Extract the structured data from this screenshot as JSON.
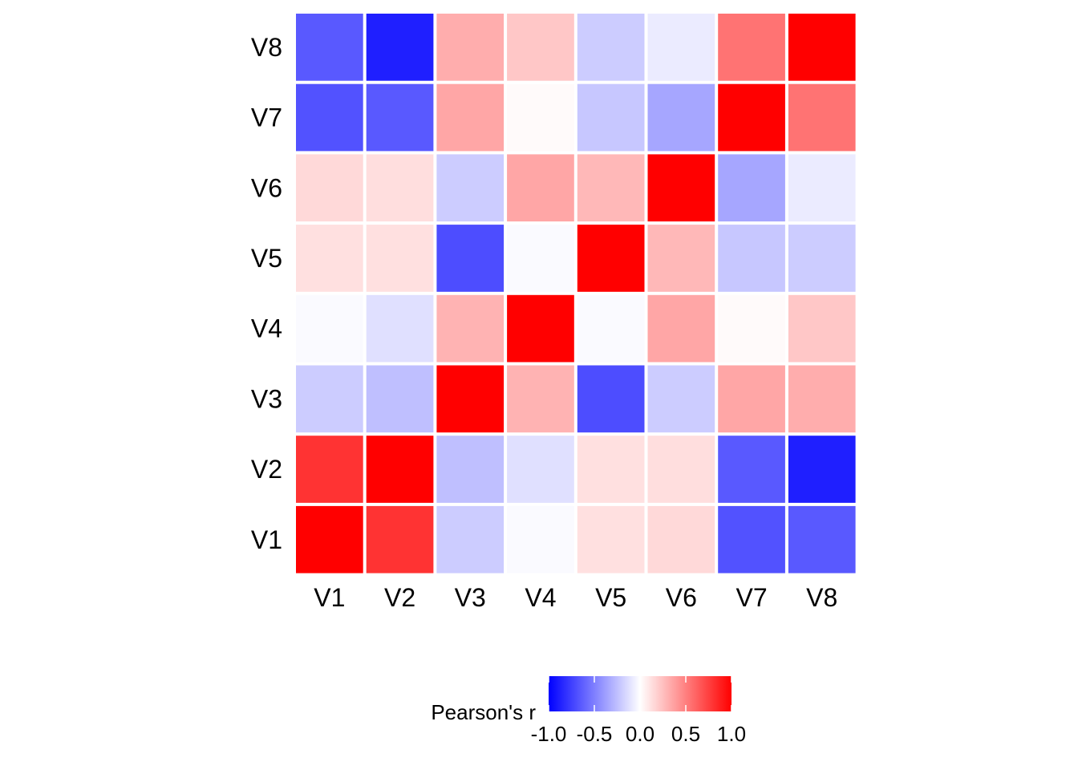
{
  "chart_data": {
    "type": "heatmap",
    "x_categories": [
      "V1",
      "V2",
      "V3",
      "V4",
      "V5",
      "V6",
      "V7",
      "V8"
    ],
    "y_categories": [
      "V1",
      "V2",
      "V3",
      "V4",
      "V5",
      "V6",
      "V7",
      "V8"
    ],
    "matrix": [
      [
        1.0,
        0.8,
        -0.2,
        -0.02,
        0.12,
        0.15,
        -0.68,
        -0.65
      ],
      [
        0.8,
        1.0,
        -0.25,
        -0.12,
        0.12,
        0.13,
        -0.65,
        -0.88
      ],
      [
        -0.2,
        -0.25,
        1.0,
        0.3,
        -0.7,
        -0.2,
        0.35,
        0.32
      ],
      [
        -0.02,
        -0.12,
        0.3,
        1.0,
        -0.02,
        0.35,
        0.02,
        0.22
      ],
      [
        0.12,
        0.12,
        -0.7,
        -0.02,
        1.0,
        0.28,
        -0.22,
        -0.2
      ],
      [
        0.15,
        0.13,
        -0.2,
        0.35,
        0.28,
        1.0,
        -0.35,
        -0.08
      ],
      [
        -0.68,
        -0.65,
        0.35,
        0.02,
        -0.22,
        -0.35,
        1.0,
        0.55
      ],
      [
        -0.65,
        -0.88,
        0.32,
        0.22,
        -0.2,
        -0.08,
        0.55,
        1.0
      ]
    ],
    "legend": {
      "title": "Pearson's r",
      "ticks": [
        -1.0,
        -0.5,
        0.0,
        0.5,
        1.0
      ],
      "tick_labels": [
        "-1.0",
        "-0.5",
        "0.0",
        "0.5",
        "1.0"
      ],
      "range": [
        -1,
        1
      ],
      "position": "bottom"
    },
    "colors": {
      "low": "#0000FF",
      "mid": "#FFFFFF",
      "high": "#FF0000"
    }
  }
}
